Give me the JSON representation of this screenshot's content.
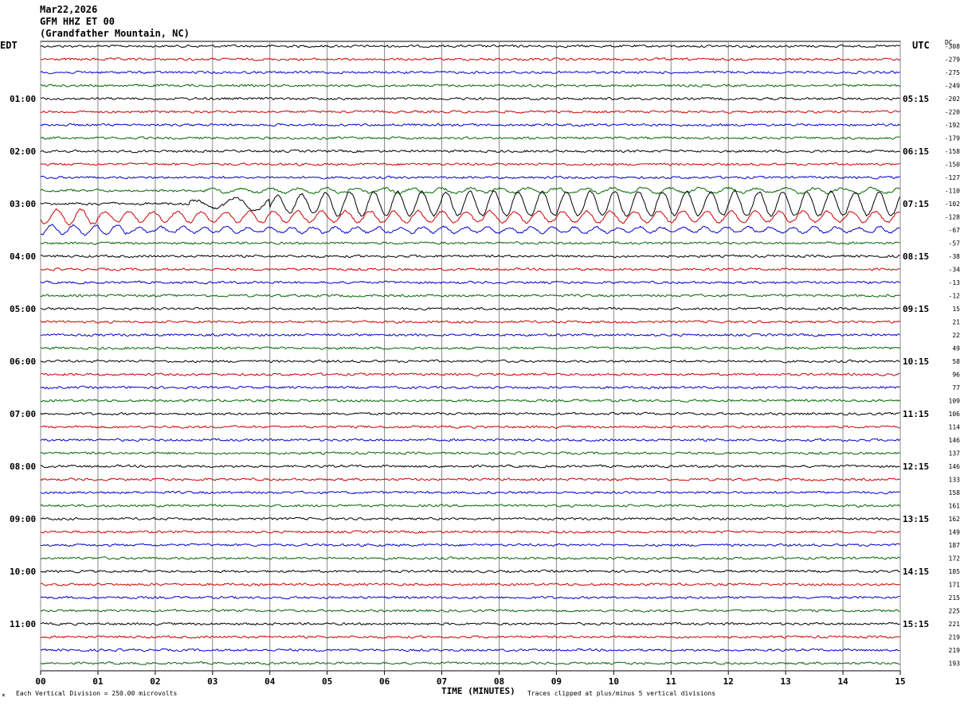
{
  "header": {
    "date": "Mar22,2026",
    "station": "GFM HHZ ET 00",
    "location": "(Grandfather Mountain, NC)",
    "left_tz": "EDT",
    "right_tz": "UTC",
    "dc_label": "DC"
  },
  "footer": {
    "scale_note": "Each Vertical Division =  250.00 microvolts",
    "xlabel": "TIME (MINUTES)",
    "clip_note": "Traces clipped at plus/minus 5 vertical divisions"
  },
  "chart_data": {
    "type": "line",
    "title": "GFM HHZ ET 00",
    "xlabel": "TIME (MINUTES)",
    "xlim": [
      0,
      15
    ],
    "x_ticks": [
      "00",
      "01",
      "02",
      "03",
      "04",
      "05",
      "06",
      "07",
      "08",
      "09",
      "10",
      "11",
      "12",
      "13",
      "14",
      "15"
    ],
    "grid": "vertical lines each minute",
    "trace_colors": [
      "#000000",
      "#cc0000",
      "#0000cc",
      "#006600"
    ],
    "trace_count": 48,
    "left_ticks": [
      {
        "trace": 4,
        "label": "01:00"
      },
      {
        "trace": 8,
        "label": "02:00"
      },
      {
        "trace": 12,
        "label": "03:00"
      },
      {
        "trace": 16,
        "label": "04:00"
      },
      {
        "trace": 20,
        "label": "05:00"
      },
      {
        "trace": 24,
        "label": "06:00"
      },
      {
        "trace": 28,
        "label": "07:00"
      },
      {
        "trace": 32,
        "label": "08:00"
      },
      {
        "trace": 36,
        "label": "09:00"
      },
      {
        "trace": 40,
        "label": "10:00"
      },
      {
        "trace": 44,
        "label": "11:00"
      }
    ],
    "right_ticks": [
      {
        "trace": 4,
        "label": "05:15"
      },
      {
        "trace": 8,
        "label": "06:15"
      },
      {
        "trace": 12,
        "label": "07:15"
      },
      {
        "trace": 16,
        "label": "08:15"
      },
      {
        "trace": 20,
        "label": "09:15"
      },
      {
        "trace": 24,
        "label": "10:15"
      },
      {
        "trace": 28,
        "label": "11:15"
      },
      {
        "trace": 32,
        "label": "12:15"
      },
      {
        "trace": 36,
        "label": "13:15"
      },
      {
        "trace": 40,
        "label": "14:15"
      },
      {
        "trace": 44,
        "label": "15:15"
      }
    ],
    "dc_offsets": [
      "-308",
      "-279",
      "-275",
      "-249",
      "-202",
      "-220",
      "-192",
      "-179",
      "-158",
      "-150",
      "-127",
      "-110",
      "-102",
      "-128",
      "-67",
      "-57",
      "-38",
      "-34",
      "-13",
      "-12",
      "15",
      "21",
      "22",
      "49",
      "58",
      "96",
      "77",
      "109",
      "106",
      "114",
      "146",
      "137",
      "146",
      "133",
      "158",
      "161",
      "162",
      "149",
      "187",
      "172",
      "185",
      "171",
      "215",
      "225",
      "221",
      "219",
      "219",
      "193"
    ],
    "event": {
      "trace_start": 11,
      "trace_end": 14,
      "onset_minute": 2.6,
      "description": "large-amplitude long-period surface waves"
    }
  }
}
